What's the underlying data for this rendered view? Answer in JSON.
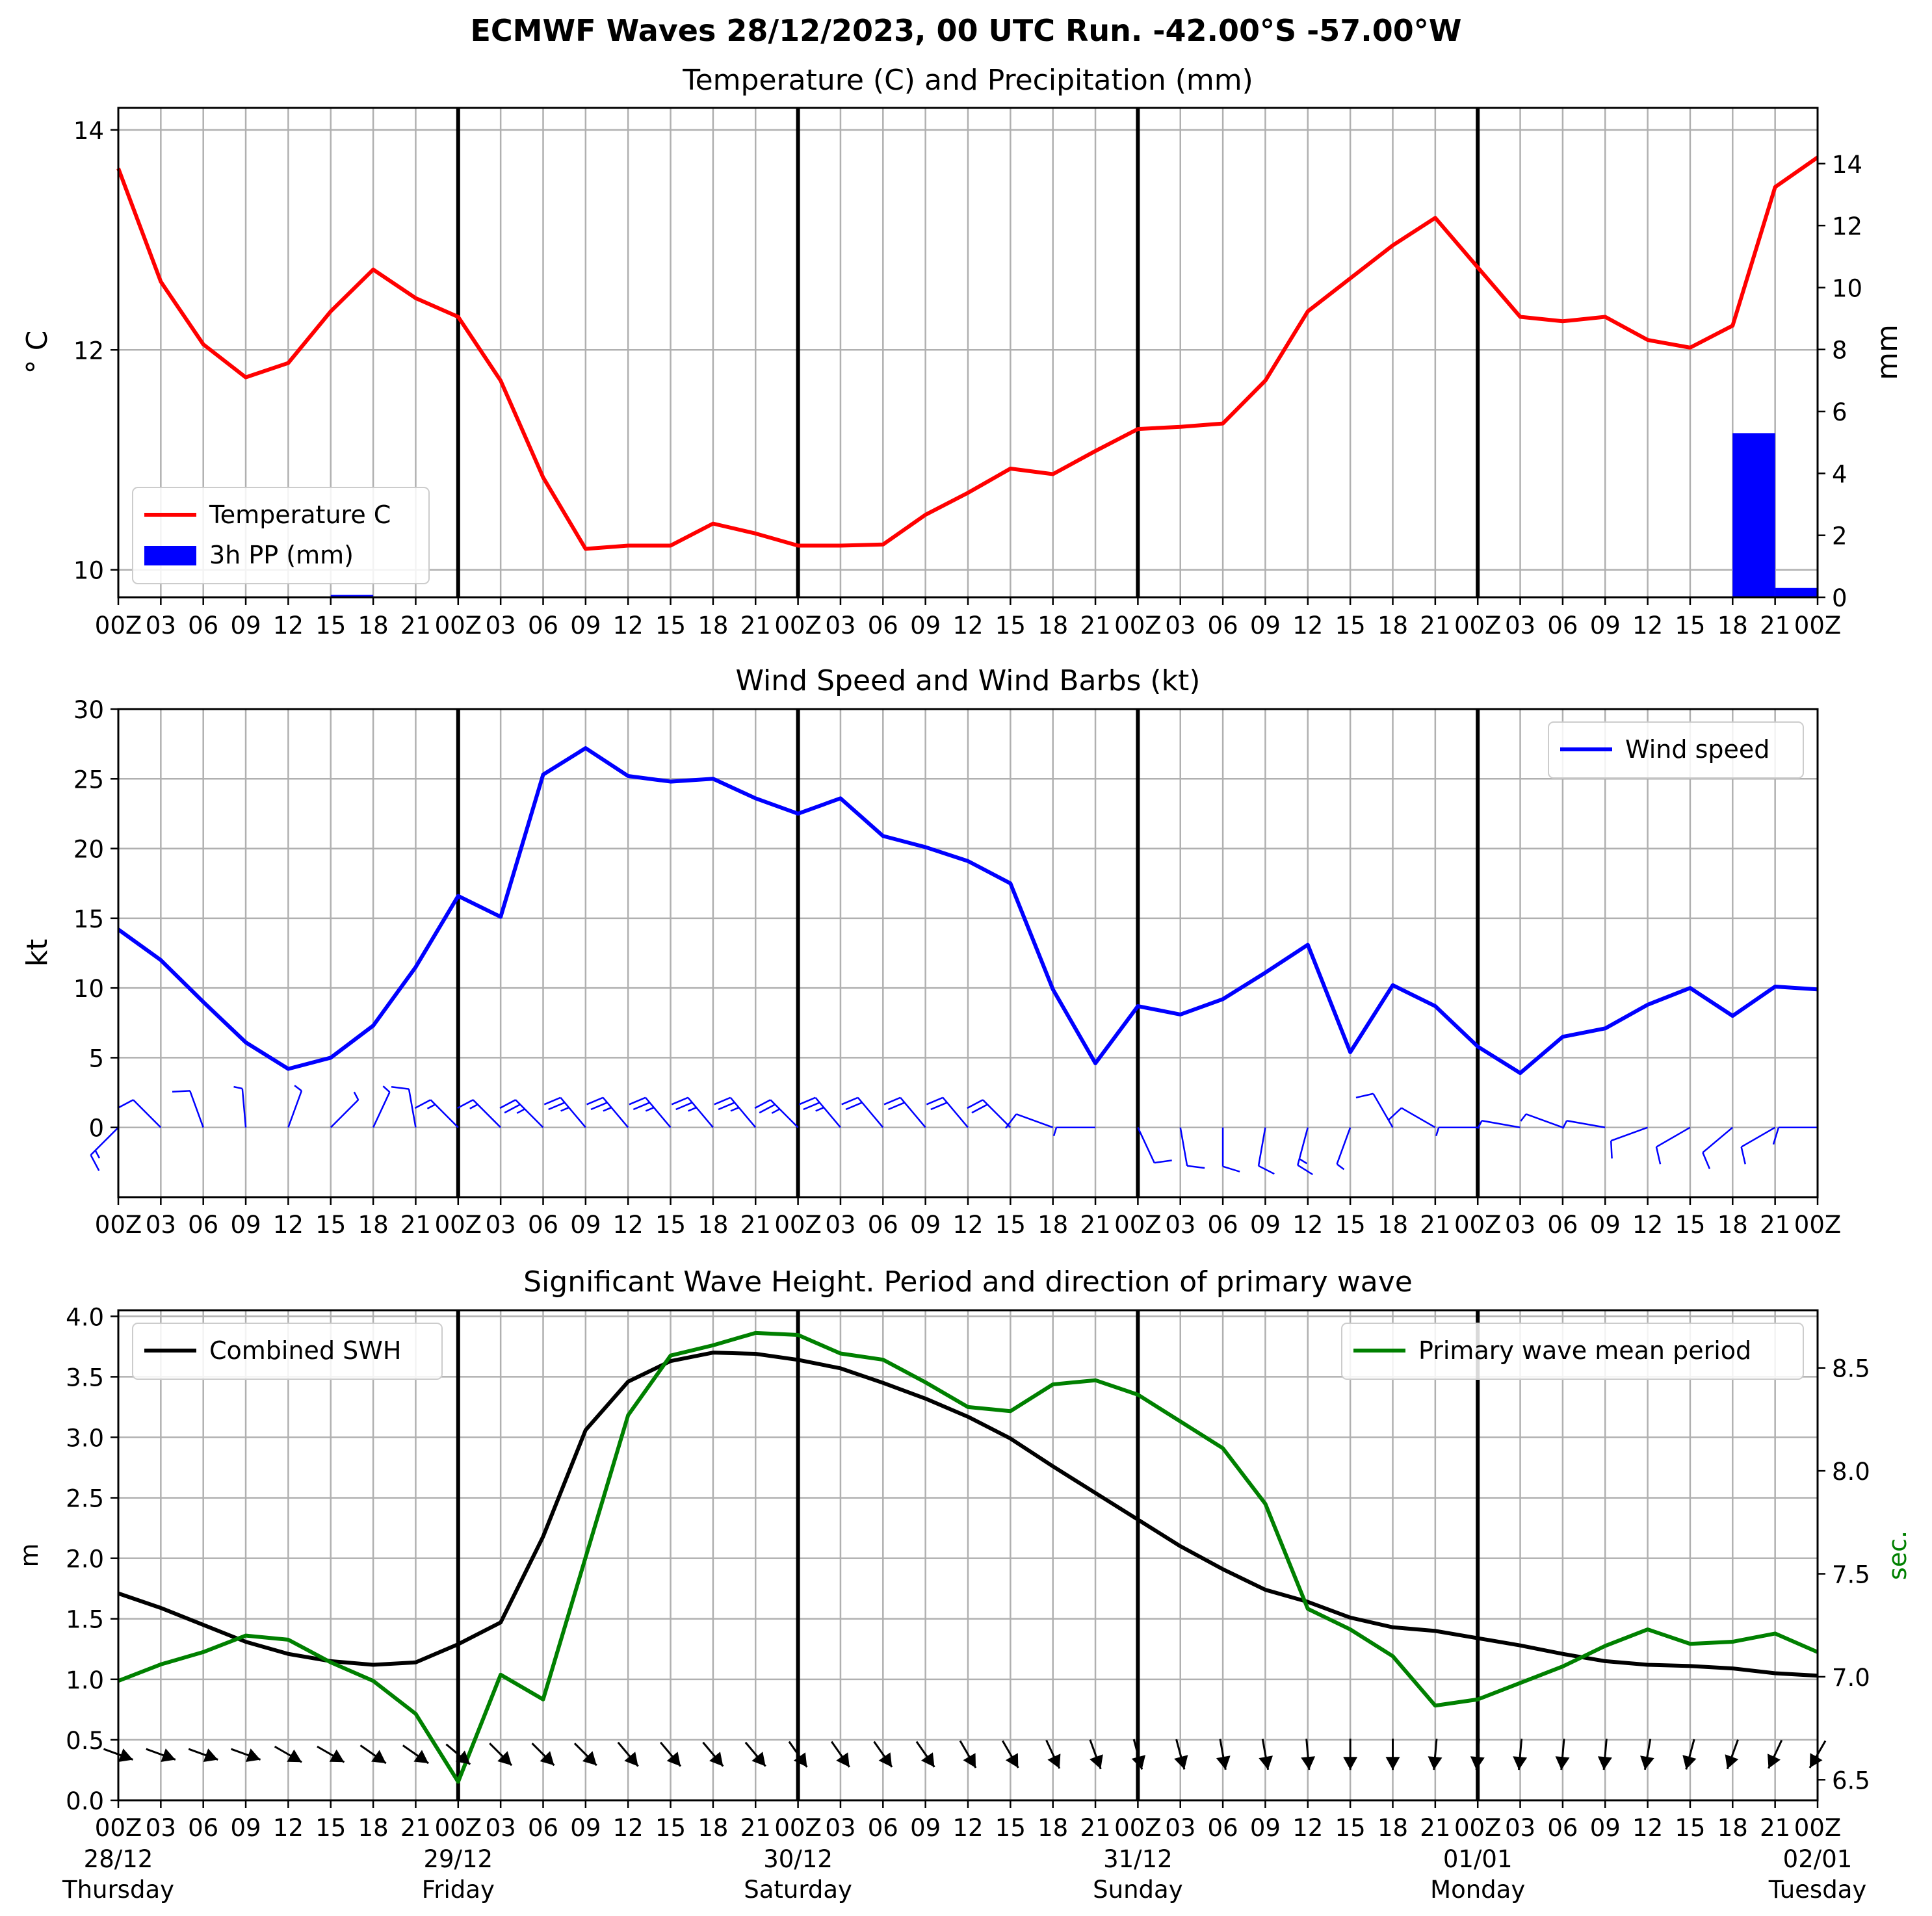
{
  "figure_title": "ECMWF Waves 28/12/2023, 00 UTC Run. -42.00°S -57.00°W",
  "x_tick_labels": [
    "00Z",
    "03",
    "06",
    "09",
    "12",
    "15",
    "18",
    "21",
    "00Z",
    "03",
    "06",
    "09",
    "12",
    "15",
    "18",
    "21",
    "00Z",
    "03",
    "06",
    "09",
    "12",
    "15",
    "18",
    "21",
    "00Z",
    "03",
    "06",
    "09",
    "12",
    "15",
    "18",
    "21",
    "00Z",
    "03",
    "06",
    "09",
    "12",
    "15",
    "18",
    "21",
    "00Z"
  ],
  "day_labels": [
    {
      "date": "28/12",
      "weekday": "Thursday"
    },
    {
      "date": "29/12",
      "weekday": "Friday"
    },
    {
      "date": "30/12",
      "weekday": "Saturday"
    },
    {
      "date": "31/12",
      "weekday": "Sunday"
    },
    {
      "date": "01/01",
      "weekday": "Monday"
    },
    {
      "date": "02/01",
      "weekday": "Tuesday"
    }
  ],
  "colors": {
    "temperature": "#ff0000",
    "precipitation": "#0000ff",
    "wind": "#0000ff",
    "swh": "#000000",
    "period": "#008000",
    "day_separator": "#000000",
    "grid": "#b0b0b0"
  },
  "chart_data": [
    {
      "type": "line",
      "title": "Temperature (C) and Precipitation (mm)",
      "x": [
        0,
        3,
        6,
        9,
        12,
        15,
        18,
        21,
        24,
        27,
        30,
        33,
        36,
        39,
        42,
        45,
        48,
        51,
        54,
        57,
        60,
        63,
        66,
        69,
        72,
        75,
        78,
        81,
        84,
        87,
        90,
        93,
        96,
        99,
        102,
        105,
        108,
        111,
        114,
        117,
        120
      ],
      "series": [
        {
          "name": "Temperature C",
          "axis": "left",
          "values": [
            13.65,
            12.62,
            12.05,
            11.75,
            11.88,
            12.35,
            12.73,
            12.47,
            12.3,
            11.72,
            10.84,
            10.19,
            10.22,
            10.22,
            10.42,
            10.33,
            10.22,
            10.22,
            10.23,
            10.5,
            10.7,
            10.92,
            10.87,
            11.08,
            11.28,
            11.3,
            11.33,
            11.72,
            12.35,
            12.65,
            12.95,
            13.2,
            12.75,
            12.3,
            12.26,
            12.3,
            12.09,
            12.02,
            12.22,
            13.48,
            13.75
          ]
        },
        {
          "name": "3h PP (mm)",
          "type": "bar",
          "axis": "right",
          "values": [
            0,
            0,
            0,
            0,
            0,
            0,
            0.08,
            0,
            0,
            0,
            0,
            0,
            0,
            0,
            0,
            0,
            0,
            0,
            0,
            0,
            0.02,
            0,
            0,
            0,
            0,
            0,
            0,
            0,
            0,
            0,
            0,
            0,
            0,
            0,
            0,
            0,
            0,
            0,
            0,
            5.3,
            0.3
          ]
        }
      ],
      "ylabel": "° C",
      "ylabel_right": "mm",
      "ylim": [
        9.75,
        14.2
      ],
      "ylim_right": [
        0,
        15.8
      ],
      "yticks": [
        10,
        12,
        14
      ],
      "yticks_right": [
        0,
        2,
        4,
        6,
        8,
        10,
        12,
        14
      ],
      "legend": "lower-left",
      "grid": true
    },
    {
      "type": "line",
      "title": "Wind Speed and Wind Barbs (kt)",
      "x": [
        0,
        3,
        6,
        9,
        12,
        15,
        18,
        21,
        24,
        27,
        30,
        33,
        36,
        39,
        42,
        45,
        48,
        51,
        54,
        57,
        60,
        63,
        66,
        69,
        72,
        75,
        78,
        81,
        84,
        87,
        90,
        93,
        96,
        99,
        102,
        105,
        108,
        111,
        114,
        117,
        120
      ],
      "series": [
        {
          "name": "Wind speed",
          "values": [
            14.2,
            12.0,
            9.0,
            6.1,
            4.2,
            5.0,
            7.3,
            11.5,
            16.6,
            15.1,
            25.3,
            27.2,
            25.2,
            24.8,
            25.0,
            23.6,
            22.5,
            23.6,
            20.9,
            20.1,
            19.1,
            17.5,
            9.9,
            4.6,
            8.7,
            8.1,
            9.2,
            11.1,
            13.1,
            5.4,
            10.2,
            8.7,
            5.8,
            3.9,
            6.5,
            7.1,
            8.8,
            10.0,
            8.0,
            10.1,
            9.9
          ]
        }
      ],
      "barbs_from_direction_deg": [
        225,
        315,
        340,
        355,
        20,
        45,
        25,
        350,
        315,
        315,
        315,
        320,
        320,
        320,
        320,
        320,
        315,
        320,
        320,
        320,
        320,
        315,
        290,
        270,
        155,
        170,
        180,
        190,
        195,
        200,
        330,
        300,
        270,
        280,
        290,
        280,
        250,
        240,
        230,
        240,
        270
      ],
      "ylabel": "kt",
      "ylim": [
        -5,
        30
      ],
      "yticks": [
        0,
        5,
        10,
        15,
        20,
        25,
        30
      ],
      "legend": "top-right",
      "grid": true
    },
    {
      "type": "line",
      "title": "Significant Wave Height. Period and direction of primary wave",
      "x": [
        0,
        3,
        6,
        9,
        12,
        15,
        18,
        21,
        24,
        27,
        30,
        33,
        36,
        39,
        42,
        45,
        48,
        51,
        54,
        57,
        60,
        63,
        66,
        69,
        72,
        75,
        78,
        81,
        84,
        87,
        90,
        93,
        96,
        99,
        102,
        105,
        108,
        111,
        114,
        117,
        120
      ],
      "series": [
        {
          "name": "Combined SWH",
          "axis": "left",
          "values": [
            1.71,
            1.59,
            1.45,
            1.31,
            1.21,
            1.15,
            1.12,
            1.14,
            1.29,
            1.47,
            2.18,
            3.06,
            3.46,
            3.63,
            3.7,
            3.69,
            3.64,
            3.57,
            3.45,
            3.32,
            3.17,
            2.99,
            2.76,
            2.54,
            2.32,
            2.1,
            1.91,
            1.74,
            1.64,
            1.51,
            1.43,
            1.4,
            1.34,
            1.28,
            1.21,
            1.15,
            1.12,
            1.11,
            1.09,
            1.05,
            1.03
          ]
        },
        {
          "name": "Primary wave mean period",
          "axis": "right",
          "values": [
            6.98,
            7.06,
            7.12,
            7.2,
            7.18,
            7.07,
            6.98,
            6.82,
            6.49,
            7.01,
            6.89,
            7.58,
            8.27,
            8.56,
            8.61,
            8.67,
            8.66,
            8.57,
            8.54,
            8.43,
            8.31,
            8.29,
            8.42,
            8.44,
            8.37,
            8.24,
            8.11,
            7.84,
            7.33,
            7.23,
            7.1,
            6.86,
            6.89,
            6.97,
            7.05,
            7.15,
            7.23,
            7.16,
            7.17,
            7.21,
            7.12
          ]
        }
      ],
      "wave_direction_arrows_from_deg": [
        250,
        250,
        250,
        250,
        240,
        240,
        235,
        235,
        230,
        225,
        225,
        225,
        220,
        220,
        220,
        220,
        215,
        215,
        215,
        215,
        210,
        210,
        205,
        200,
        195,
        195,
        190,
        190,
        185,
        180,
        180,
        175,
        175,
        175,
        175,
        175,
        170,
        165,
        160,
        155,
        150
      ],
      "ylabel": "m",
      "ylabel_right": "sec.",
      "ylim": [
        0,
        4.05
      ],
      "ylim_right": [
        6.4,
        8.78
      ],
      "yticks": [
        0.0,
        0.5,
        1.0,
        1.5,
        2.0,
        2.5,
        3.0,
        3.5,
        4.0
      ],
      "yticks_right": [
        6.5,
        7.0,
        7.5,
        8.0,
        8.5
      ],
      "legend": [
        "top-left",
        "top-right"
      ],
      "grid": true
    }
  ]
}
